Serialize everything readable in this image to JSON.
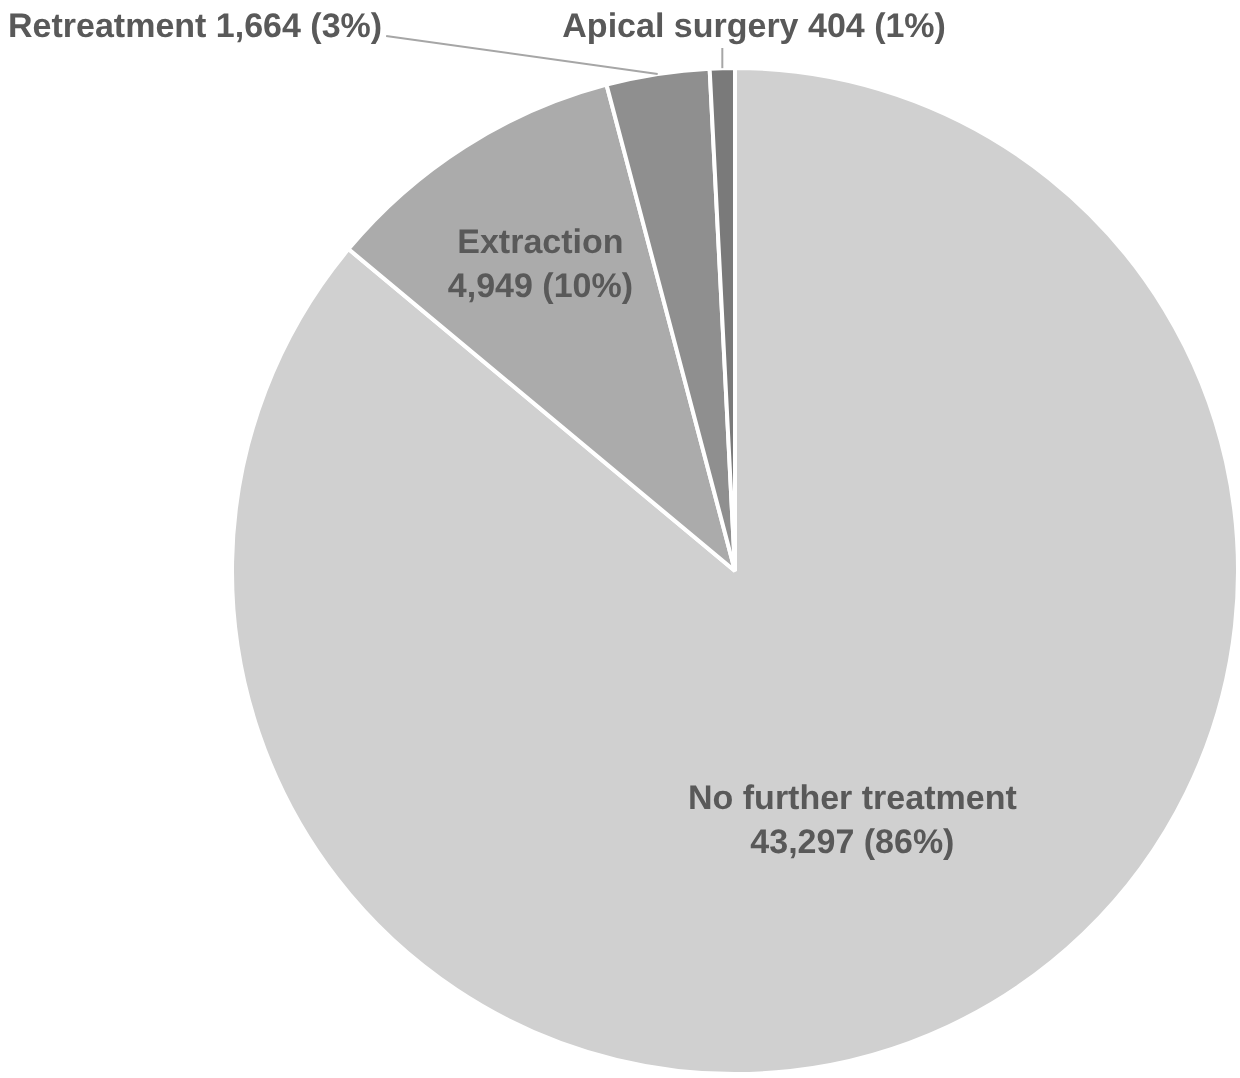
{
  "chart_data": {
    "type": "pie",
    "categories": [
      "No further treatment",
      "Extraction",
      "Retreatment",
      "Apical surgery"
    ],
    "values": [
      43297,
      4949,
      1664,
      404
    ],
    "colors": [
      "#d0d0d0",
      "#ababab",
      "#8f8f8f",
      "#7a7a7a"
    ],
    "value_labels": [
      "43,297 (86%)",
      "4,949 (10%)",
      "1,664 (3%)",
      "404 (1%)"
    ],
    "legend": false
  }
}
